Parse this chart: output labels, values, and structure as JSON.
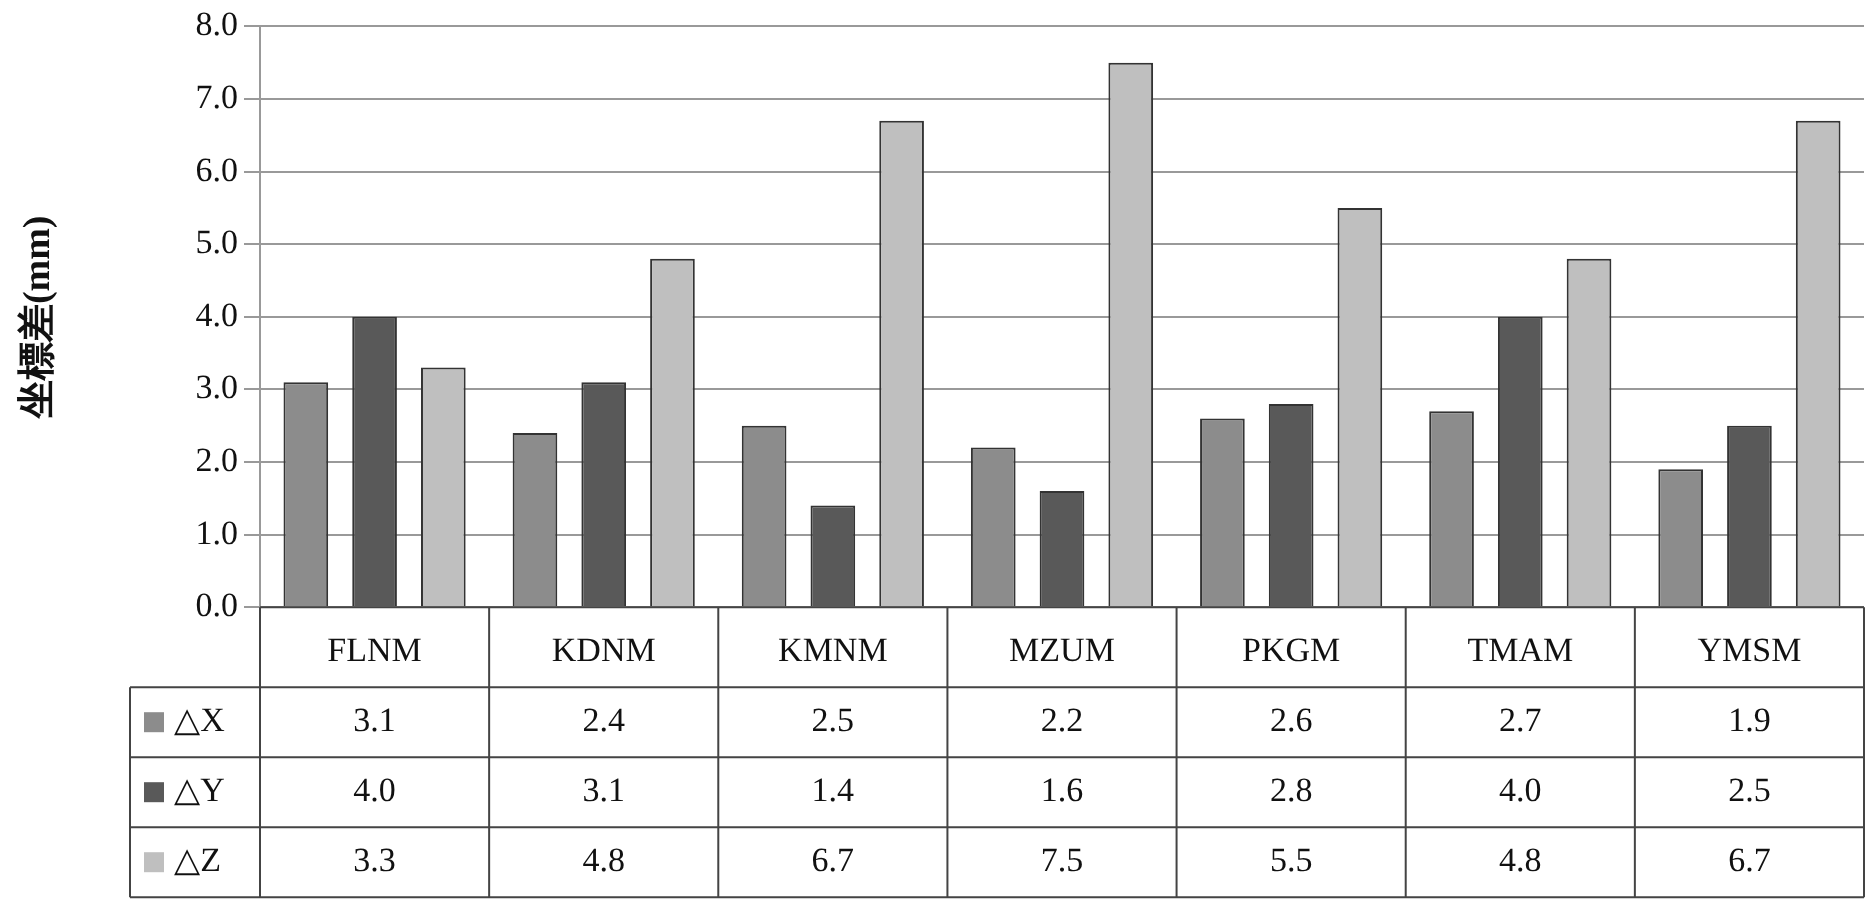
{
  "chart_data": {
    "type": "bar",
    "ylabel": "坐標差(mm)",
    "categories": [
      "FLNM",
      "KDNM",
      "KMNM",
      "MZUM",
      "PKGM",
      "TMAM",
      "YMSM"
    ],
    "series": [
      {
        "name": "△X",
        "color": "#8c8c8c",
        "values": [
          3.1,
          2.4,
          2.5,
          2.2,
          2.6,
          2.7,
          1.9
        ],
        "value_labels": [
          "3.1",
          "2.4",
          "2.5",
          "2.2",
          "2.6",
          "2.7",
          "1.9"
        ]
      },
      {
        "name": "△Y",
        "color": "#595959",
        "values": [
          4.0,
          3.1,
          1.4,
          1.6,
          2.8,
          4.0,
          2.5
        ],
        "value_labels": [
          "4.0",
          "3.1",
          "1.4",
          "1.6",
          "2.8",
          "4.0",
          "2.5"
        ]
      },
      {
        "name": "△Z",
        "color": "#bfbfbf",
        "values": [
          3.3,
          4.8,
          6.7,
          7.5,
          5.5,
          4.8,
          6.7
        ],
        "value_labels": [
          "3.3",
          "4.8",
          "6.7",
          "7.5",
          "5.5",
          "4.8",
          "6.7"
        ]
      }
    ],
    "ylim": [
      0,
      8
    ],
    "yticks": [
      {
        "value": 0,
        "label": "0.0"
      },
      {
        "value": 1,
        "label": "1.0"
      },
      {
        "value": 2,
        "label": "2.0"
      },
      {
        "value": 3,
        "label": "3.0"
      },
      {
        "value": 4,
        "label": "4.0"
      },
      {
        "value": 5,
        "label": "5.0"
      },
      {
        "value": 6,
        "label": "6.0"
      },
      {
        "value": 7,
        "label": "7.0"
      },
      {
        "value": 8,
        "label": "8.0"
      }
    ],
    "grid": "y",
    "legend": "bottom"
  }
}
